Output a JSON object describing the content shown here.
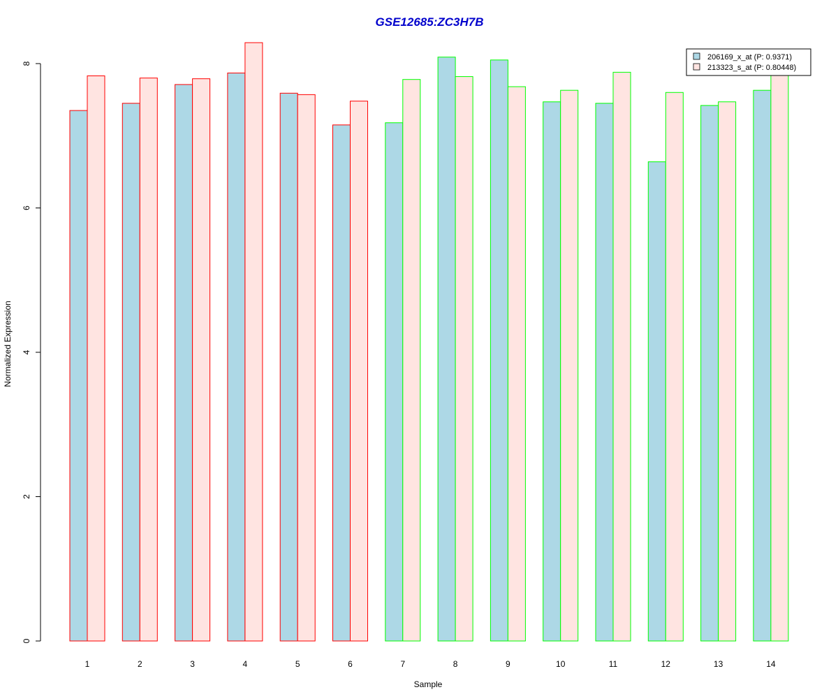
{
  "chart_data": {
    "type": "bar",
    "title": "GSE12685:ZC3H7B",
    "xlabel": "Sample",
    "ylabel": "Normalized Expression",
    "categories": [
      "1",
      "2",
      "3",
      "4",
      "5",
      "6",
      "7",
      "8",
      "9",
      "10",
      "11",
      "12",
      "13",
      "14"
    ],
    "ylim": [
      0,
      8.3
    ],
    "yticks": [
      0,
      2,
      4,
      6,
      8
    ],
    "grid": false,
    "legend_position": "top-right",
    "series": [
      {
        "name": "206169_x_at (P: 0.9371)",
        "fill": "#add8e6",
        "values": [
          7.35,
          7.45,
          7.71,
          7.87,
          7.59,
          7.15,
          7.18,
          8.09,
          8.05,
          7.47,
          7.45,
          6.64,
          7.42,
          7.63
        ]
      },
      {
        "name": "213323_s_at (P: 0.80448)",
        "fill": "#ffe4e1",
        "values": [
          7.83,
          7.8,
          7.79,
          8.29,
          7.57,
          7.48,
          7.78,
          7.82,
          7.68,
          7.63,
          7.88,
          7.6,
          7.47,
          7.94
        ]
      }
    ],
    "group_border_colors": [
      "#ff0000",
      "#ff0000",
      "#ff0000",
      "#ff0000",
      "#ff0000",
      "#ff0000",
      "#00ff00",
      "#00ff00",
      "#00ff00",
      "#00ff00",
      "#00ff00",
      "#00ff00",
      "#00ff00",
      "#00ff00"
    ],
    "title_color": "#0000cc"
  }
}
